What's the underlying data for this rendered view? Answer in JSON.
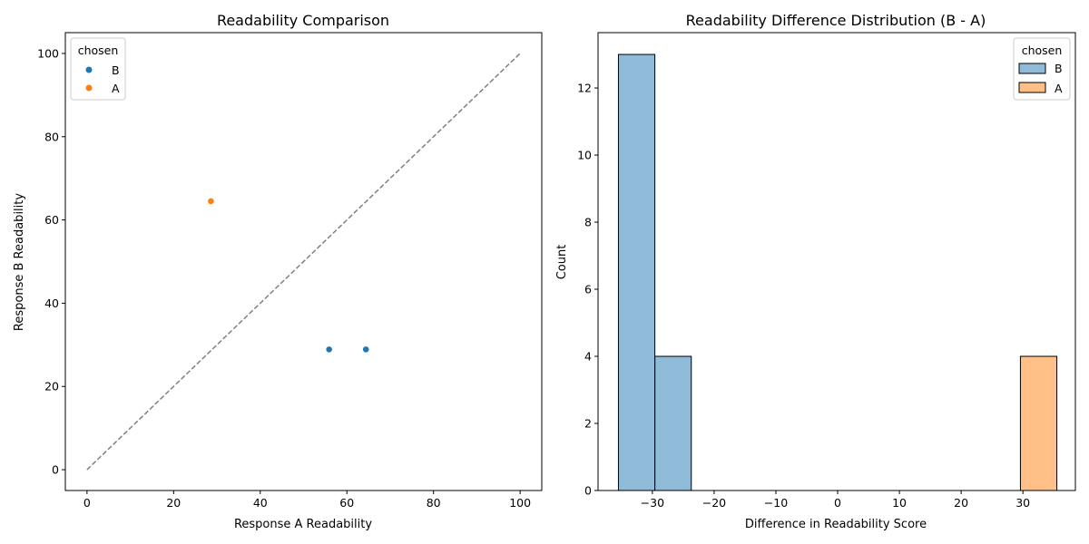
{
  "chart_data": [
    {
      "type": "scatter",
      "title": "Readability Comparison",
      "xlabel": "Response A Readability",
      "ylabel": "Response B Readability",
      "xlim": [
        -5,
        105
      ],
      "ylim": [
        -5,
        105
      ],
      "xticks": [
        0,
        20,
        40,
        60,
        80,
        100
      ],
      "yticks": [
        0,
        20,
        40,
        60,
        80,
        100
      ],
      "grid": false,
      "legend": {
        "title": "chosen",
        "placement": "top-left",
        "entries": [
          {
            "label": "B",
            "color": "#1f77b4"
          },
          {
            "label": "A",
            "color": "#ff7f0e"
          }
        ]
      },
      "reference_line": {
        "x": [
          0,
          100
        ],
        "y": [
          0,
          100
        ],
        "style": "dashed",
        "color": "#808080"
      },
      "series": [
        {
          "name": "B",
          "color": "#1f77b4",
          "points": [
            {
              "x": 55.9,
              "y": 28.9
            },
            {
              "x": 64.4,
              "y": 28.9
            }
          ]
        },
        {
          "name": "A",
          "color": "#ff7f0e",
          "points": [
            {
              "x": 28.6,
              "y": 64.5
            }
          ]
        }
      ]
    },
    {
      "type": "histogram",
      "title": "Readability Difference Distribution (B - A)",
      "xlabel": "Difference in Readability Score",
      "ylabel": "Count",
      "xlim": [
        -38.8,
        38.5
      ],
      "ylim": [
        0,
        13.65
      ],
      "xticks": [
        -30,
        -20,
        -10,
        0,
        10,
        20,
        30
      ],
      "xtick_labels": [
        "−30",
        "−20",
        "−10",
        "0",
        "10",
        "20",
        "30"
      ],
      "yticks": [
        0,
        2,
        4,
        6,
        8,
        10,
        12
      ],
      "grid": false,
      "legend": {
        "title": "chosen",
        "placement": "top-right",
        "entries": [
          {
            "label": "B",
            "color": "#1f77b4"
          },
          {
            "label": "A",
            "color": "#ff7f0e"
          }
        ]
      },
      "bin_edges": [
        -35.5,
        -29.6,
        -23.7,
        -17.8,
        -11.8,
        -5.9,
        0,
        5.9,
        11.8,
        17.8,
        23.7,
        29.6,
        35.5
      ],
      "series": [
        {
          "name": "B",
          "color": "#1f77b4",
          "counts": [
            13,
            4,
            0,
            0,
            0,
            0,
            0,
            0,
            0,
            0,
            0,
            0
          ]
        },
        {
          "name": "A",
          "color": "#ff7f0e",
          "counts": [
            0,
            0,
            0,
            0,
            0,
            0,
            0,
            0,
            0,
            0,
            0,
            4
          ]
        }
      ]
    }
  ]
}
